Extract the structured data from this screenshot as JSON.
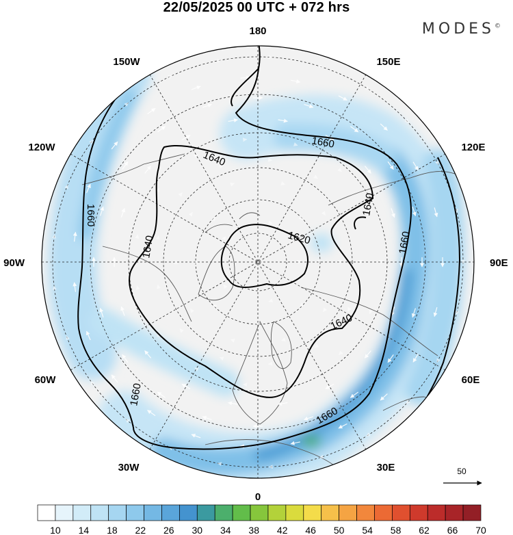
{
  "title": "22/05/2025  00 UTC  + 072 hrs",
  "brand": "MODES",
  "brand_mark": "©",
  "longitude_labels": [
    {
      "id": "180",
      "text": "180"
    },
    {
      "id": "150E",
      "text": "150E"
    },
    {
      "id": "120E",
      "text": "120E"
    },
    {
      "id": "90E",
      "text": "90E"
    },
    {
      "id": "60E",
      "text": "60E"
    },
    {
      "id": "30E",
      "text": "30E"
    },
    {
      "id": "0",
      "text": "0"
    },
    {
      "id": "30W",
      "text": "30W"
    },
    {
      "id": "60W",
      "text": "60W"
    },
    {
      "id": "90W",
      "text": "90W"
    },
    {
      "id": "120W",
      "text": "120W"
    },
    {
      "id": "150W",
      "text": "150W"
    }
  ],
  "contours": [
    {
      "value": "1620",
      "labels": [
        "1620"
      ]
    },
    {
      "value": "1640",
      "labels": [
        "1640",
        "1640",
        "1640",
        "1640"
      ]
    },
    {
      "value": "1660",
      "labels": [
        "1660",
        "1660",
        "1660",
        "1660",
        "1660"
      ]
    }
  ],
  "reference_vector": {
    "label": "50"
  },
  "colorbar": {
    "tick_labels": [
      "10",
      "14",
      "18",
      "22",
      "26",
      "30",
      "34",
      "38",
      "42",
      "46",
      "50",
      "54",
      "58",
      "62",
      "66",
      "70"
    ],
    "colors": [
      "#ffffff",
      "#e6f4fb",
      "#d2ecf8",
      "#bfe3f5",
      "#a6d6f1",
      "#8ec9ec",
      "#74b8e4",
      "#5aa5da",
      "#4493cf",
      "#3b9aa0",
      "#4caf6c",
      "#62bd4a",
      "#86c63c",
      "#b3d23a",
      "#dadb3d",
      "#f4dc4a",
      "#f6c04a",
      "#f5a443",
      "#f2873c",
      "#ec6a34",
      "#e0502f",
      "#cf3a2c",
      "#bc2c2a",
      "#a82428",
      "#931f26"
    ]
  }
}
